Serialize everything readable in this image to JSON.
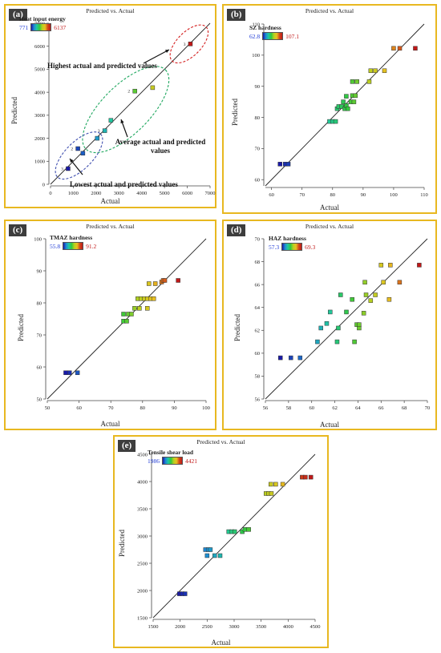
{
  "chart_data": [
    {
      "id": "a",
      "panel_label": "(a)",
      "type": "scatter",
      "title": "Predicted vs. Actual",
      "xlabel": "Actual",
      "ylabel": "Predicted",
      "xlim": [
        0,
        7000
      ],
      "ylim": [
        0,
        7000
      ],
      "xticks": [
        0,
        1000,
        2000,
        3000,
        4000,
        5000,
        6000,
        7000
      ],
      "yticks": [
        0,
        1000,
        2000,
        3000,
        4000,
        5000,
        6000,
        7000
      ],
      "legend": {
        "title": "Heat input energy",
        "min_label": "771",
        "max_label": "6137",
        "min": 771,
        "max": 6137
      },
      "points": [
        {
          "x": 771,
          "y": 680
        },
        {
          "x": 1200,
          "y": 1550
        },
        {
          "x": 1420,
          "y": 1350
        },
        {
          "x": 2050,
          "y": 2000
        },
        {
          "x": 2380,
          "y": 2330
        },
        {
          "x": 2650,
          "y": 2780
        },
        {
          "x": 3700,
          "y": 4050
        },
        {
          "x": 4480,
          "y": 4200
        },
        {
          "x": 6137,
          "y": 6100
        }
      ],
      "run_labels": [
        {
          "x": 771,
          "y": 680,
          "text": "3"
        },
        {
          "x": 1200,
          "y": 1550,
          "text": "2"
        },
        {
          "x": 2380,
          "y": 2330,
          "text": "3"
        },
        {
          "x": 3700,
          "y": 4050,
          "text": "2"
        },
        {
          "x": 6137,
          "y": 6100,
          "text": "3"
        }
      ],
      "annotations": [
        {
          "text": "Highest actual and predicted values"
        },
        {
          "text": "Average actual and predicted values"
        },
        {
          "text": "Lowest actual and predicted values"
        }
      ]
    },
    {
      "id": "b",
      "panel_label": "(b)",
      "type": "scatter",
      "title": "Predicted vs. Actual",
      "xlabel": "Actual",
      "ylabel": "Predicted",
      "xlim": [
        58,
        110
      ],
      "ylim": [
        58,
        110
      ],
      "xticks": [
        60,
        70,
        80,
        90,
        100,
        110
      ],
      "yticks": [
        60,
        70,
        80,
        90,
        100,
        110
      ],
      "legend": {
        "title": "SZ hardness",
        "min_label": "62.8",
        "max_label": "107.1",
        "min": 62.8,
        "max": 107.1
      },
      "points": [
        {
          "x": 62.8,
          "y": 65
        },
        {
          "x": 64.5,
          "y": 65
        },
        {
          "x": 65.5,
          "y": 65
        },
        {
          "x": 79,
          "y": 78.7
        },
        {
          "x": 80,
          "y": 78.7
        },
        {
          "x": 81,
          "y": 78.7
        },
        {
          "x": 81.5,
          "y": 82.8
        },
        {
          "x": 82,
          "y": 83.5
        },
        {
          "x": 83,
          "y": 83.5
        },
        {
          "x": 83.5,
          "y": 85
        },
        {
          "x": 84,
          "y": 82.8
        },
        {
          "x": 84.5,
          "y": 83.8
        },
        {
          "x": 85,
          "y": 82.8
        },
        {
          "x": 84.5,
          "y": 86.8
        },
        {
          "x": 86,
          "y": 85
        },
        {
          "x": 87,
          "y": 85
        },
        {
          "x": 86.5,
          "y": 87
        },
        {
          "x": 87.5,
          "y": 87
        },
        {
          "x": 88,
          "y": 91.5
        },
        {
          "x": 86.5,
          "y": 91.5
        },
        {
          "x": 92,
          "y": 91.5
        },
        {
          "x": 92.5,
          "y": 95
        },
        {
          "x": 94,
          "y": 95
        },
        {
          "x": 97,
          "y": 95
        },
        {
          "x": 100,
          "y": 102.2
        },
        {
          "x": 102,
          "y": 102.2
        },
        {
          "x": 107.1,
          "y": 102.2
        }
      ]
    },
    {
      "id": "c",
      "panel_label": "(c)",
      "type": "scatter",
      "title": "Predicted vs. Actual",
      "xlabel": "Actual",
      "ylabel": "Predicted",
      "xlim": [
        50,
        100
      ],
      "ylim": [
        50,
        100
      ],
      "xticks": [
        50,
        60,
        70,
        80,
        90,
        100
      ],
      "yticks": [
        50,
        60,
        70,
        80,
        90,
        100
      ],
      "legend": {
        "title": "TMAZ hardness",
        "min_label": "55.8",
        "max_label": "91.2",
        "min": 55.8,
        "max": 91.2
      },
      "points": [
        {
          "x": 55.8,
          "y": 58.2
        },
        {
          "x": 57,
          "y": 58.2
        },
        {
          "x": 59.5,
          "y": 58.2
        },
        {
          "x": 74,
          "y": 74.3
        },
        {
          "x": 75,
          "y": 74.3
        },
        {
          "x": 74,
          "y": 76.5
        },
        {
          "x": 75.5,
          "y": 76.5
        },
        {
          "x": 76.5,
          "y": 76.5
        },
        {
          "x": 77.5,
          "y": 78.3
        },
        {
          "x": 79,
          "y": 78.3
        },
        {
          "x": 81.5,
          "y": 78.3
        },
        {
          "x": 78.5,
          "y": 81.3
        },
        {
          "x": 79.5,
          "y": 81.3
        },
        {
          "x": 80.5,
          "y": 81.3
        },
        {
          "x": 81.5,
          "y": 81.3
        },
        {
          "x": 82.5,
          "y": 81.3
        },
        {
          "x": 83.5,
          "y": 81.3
        },
        {
          "x": 82,
          "y": 86
        },
        {
          "x": 84,
          "y": 86
        },
        {
          "x": 86,
          "y": 86.5
        },
        {
          "x": 86.5,
          "y": 87
        },
        {
          "x": 87,
          "y": 87
        },
        {
          "x": 91.2,
          "y": 87
        }
      ]
    },
    {
      "id": "d",
      "panel_label": "(d)",
      "type": "scatter",
      "title": "Predicted vs. Actual",
      "xlabel": "Actual",
      "ylabel": "Predicted",
      "xlim": [
        56,
        70
      ],
      "ylim": [
        56,
        70
      ],
      "xticks": [
        56,
        58,
        60,
        62,
        64,
        66,
        68,
        70
      ],
      "yticks": [
        56,
        58,
        60,
        62,
        64,
        66,
        68,
        70
      ],
      "legend": {
        "title": "HAZ hardness",
        "min_label": "57.3",
        "max_label": "69.3",
        "min": 57.3,
        "max": 69.3
      },
      "points": [
        {
          "x": 57.3,
          "y": 59.6
        },
        {
          "x": 58.2,
          "y": 59.6
        },
        {
          "x": 59,
          "y": 59.6
        },
        {
          "x": 60.5,
          "y": 61
        },
        {
          "x": 60.8,
          "y": 62.2
        },
        {
          "x": 61.3,
          "y": 62.6
        },
        {
          "x": 61.6,
          "y": 63.6
        },
        {
          "x": 62.2,
          "y": 61
        },
        {
          "x": 62.3,
          "y": 62.2
        },
        {
          "x": 62.5,
          "y": 65.1
        },
        {
          "x": 63,
          "y": 63.6
        },
        {
          "x": 63.5,
          "y": 64.7
        },
        {
          "x": 63.7,
          "y": 61
        },
        {
          "x": 63.9,
          "y": 62.5
        },
        {
          "x": 64.1,
          "y": 62.2
        },
        {
          "x": 64.1,
          "y": 62.5
        },
        {
          "x": 64.5,
          "y": 63.5
        },
        {
          "x": 64.6,
          "y": 66.2
        },
        {
          "x": 64.7,
          "y": 65.1
        },
        {
          "x": 65.1,
          "y": 64.6
        },
        {
          "x": 65.5,
          "y": 65.1
        },
        {
          "x": 66,
          "y": 67.7
        },
        {
          "x": 66.2,
          "y": 66.2
        },
        {
          "x": 66.7,
          "y": 64.7
        },
        {
          "x": 66.8,
          "y": 67.7
        },
        {
          "x": 67.6,
          "y": 66.2
        },
        {
          "x": 69.3,
          "y": 67.7
        }
      ]
    },
    {
      "id": "e",
      "panel_label": "(e)",
      "type": "scatter",
      "title": "Predicted vs. Actual",
      "xlabel": "Actual",
      "ylabel": "Predicted",
      "xlim": [
        1500,
        4500
      ],
      "ylim": [
        1500,
        4500
      ],
      "xticks": [
        1500,
        2000,
        2500,
        3000,
        3500,
        4000,
        4500
      ],
      "yticks": [
        1500,
        2000,
        2500,
        3000,
        3500,
        4000,
        4500
      ],
      "legend": {
        "title": "Tensile shear load",
        "min_label": "1986",
        "max_label": "4421",
        "min": 1986,
        "max": 4421
      },
      "points": [
        {
          "x": 1986,
          "y": 1940
        },
        {
          "x": 2040,
          "y": 1940
        },
        {
          "x": 2090,
          "y": 1940
        },
        {
          "x": 2470,
          "y": 2750
        },
        {
          "x": 2520,
          "y": 2750
        },
        {
          "x": 2560,
          "y": 2750
        },
        {
          "x": 2500,
          "y": 2640
        },
        {
          "x": 2640,
          "y": 2640
        },
        {
          "x": 2740,
          "y": 2640
        },
        {
          "x": 2900,
          "y": 3080
        },
        {
          "x": 2960,
          "y": 3080
        },
        {
          "x": 3010,
          "y": 3080
        },
        {
          "x": 3150,
          "y": 3080
        },
        {
          "x": 3200,
          "y": 3120
        },
        {
          "x": 3270,
          "y": 3120
        },
        {
          "x": 3590,
          "y": 3780
        },
        {
          "x": 3640,
          "y": 3780
        },
        {
          "x": 3690,
          "y": 3780
        },
        {
          "x": 3680,
          "y": 3950
        },
        {
          "x": 3770,
          "y": 3950
        },
        {
          "x": 3900,
          "y": 3950
        },
        {
          "x": 4260,
          "y": 4080
        },
        {
          "x": 4320,
          "y": 4080
        },
        {
          "x": 4421,
          "y": 4080
        }
      ]
    }
  ]
}
